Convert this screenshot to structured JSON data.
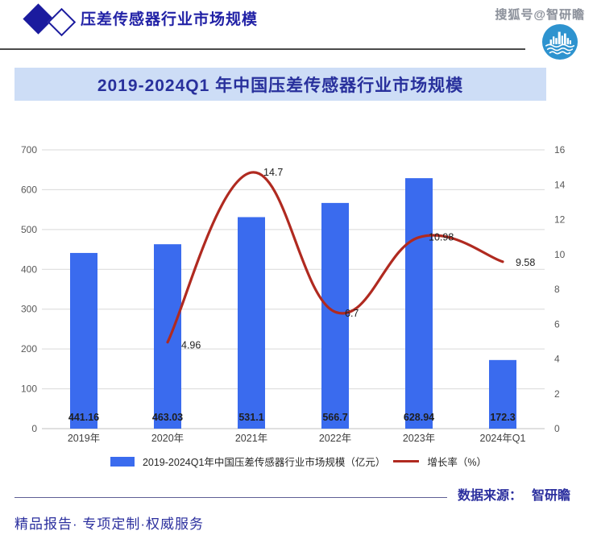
{
  "header": {
    "title": "压差传感器行业市场规模",
    "sohu_badge": "搜狐号@智研瞻"
  },
  "icons": {
    "header_logo": "double-diamond-logo",
    "brand_logo": "zhiyanzhan-circle-logo"
  },
  "banner": {
    "title": "2019-2024Q1 年中国压差传感器行业市场规模"
  },
  "chart_data": {
    "type": "bar+line",
    "categories": [
      "2019年",
      "2020年",
      "2021年",
      "2022年",
      "2023年",
      "2024年Q1"
    ],
    "series": [
      {
        "name": "2019-2024Q1年中国压差传感器行业市场规模（亿元）",
        "type": "bar",
        "color": "#3a6bee",
        "values": [
          441.16,
          463.03,
          531.1,
          566.7,
          628.94,
          172.3
        ]
      },
      {
        "name": "增长率（%）",
        "type": "line",
        "color": "#b02a20",
        "values": [
          null,
          4.96,
          14.7,
          6.7,
          10.98,
          9.58
        ]
      }
    ],
    "axis_left": {
      "min": 0,
      "max": 700,
      "step": 100
    },
    "axis_right": {
      "min": 0,
      "max": 16,
      "step": 2
    },
    "grid": true,
    "legend_position": "bottom",
    "grid_color": "#d9d9d9",
    "axis_label_color": "#595959",
    "data_label_color": "#1f1f1f"
  },
  "source": {
    "label": "数据来源：",
    "value": "智研瞻"
  },
  "footer": {
    "text": "精品报告· 专项定制·权威服务"
  }
}
